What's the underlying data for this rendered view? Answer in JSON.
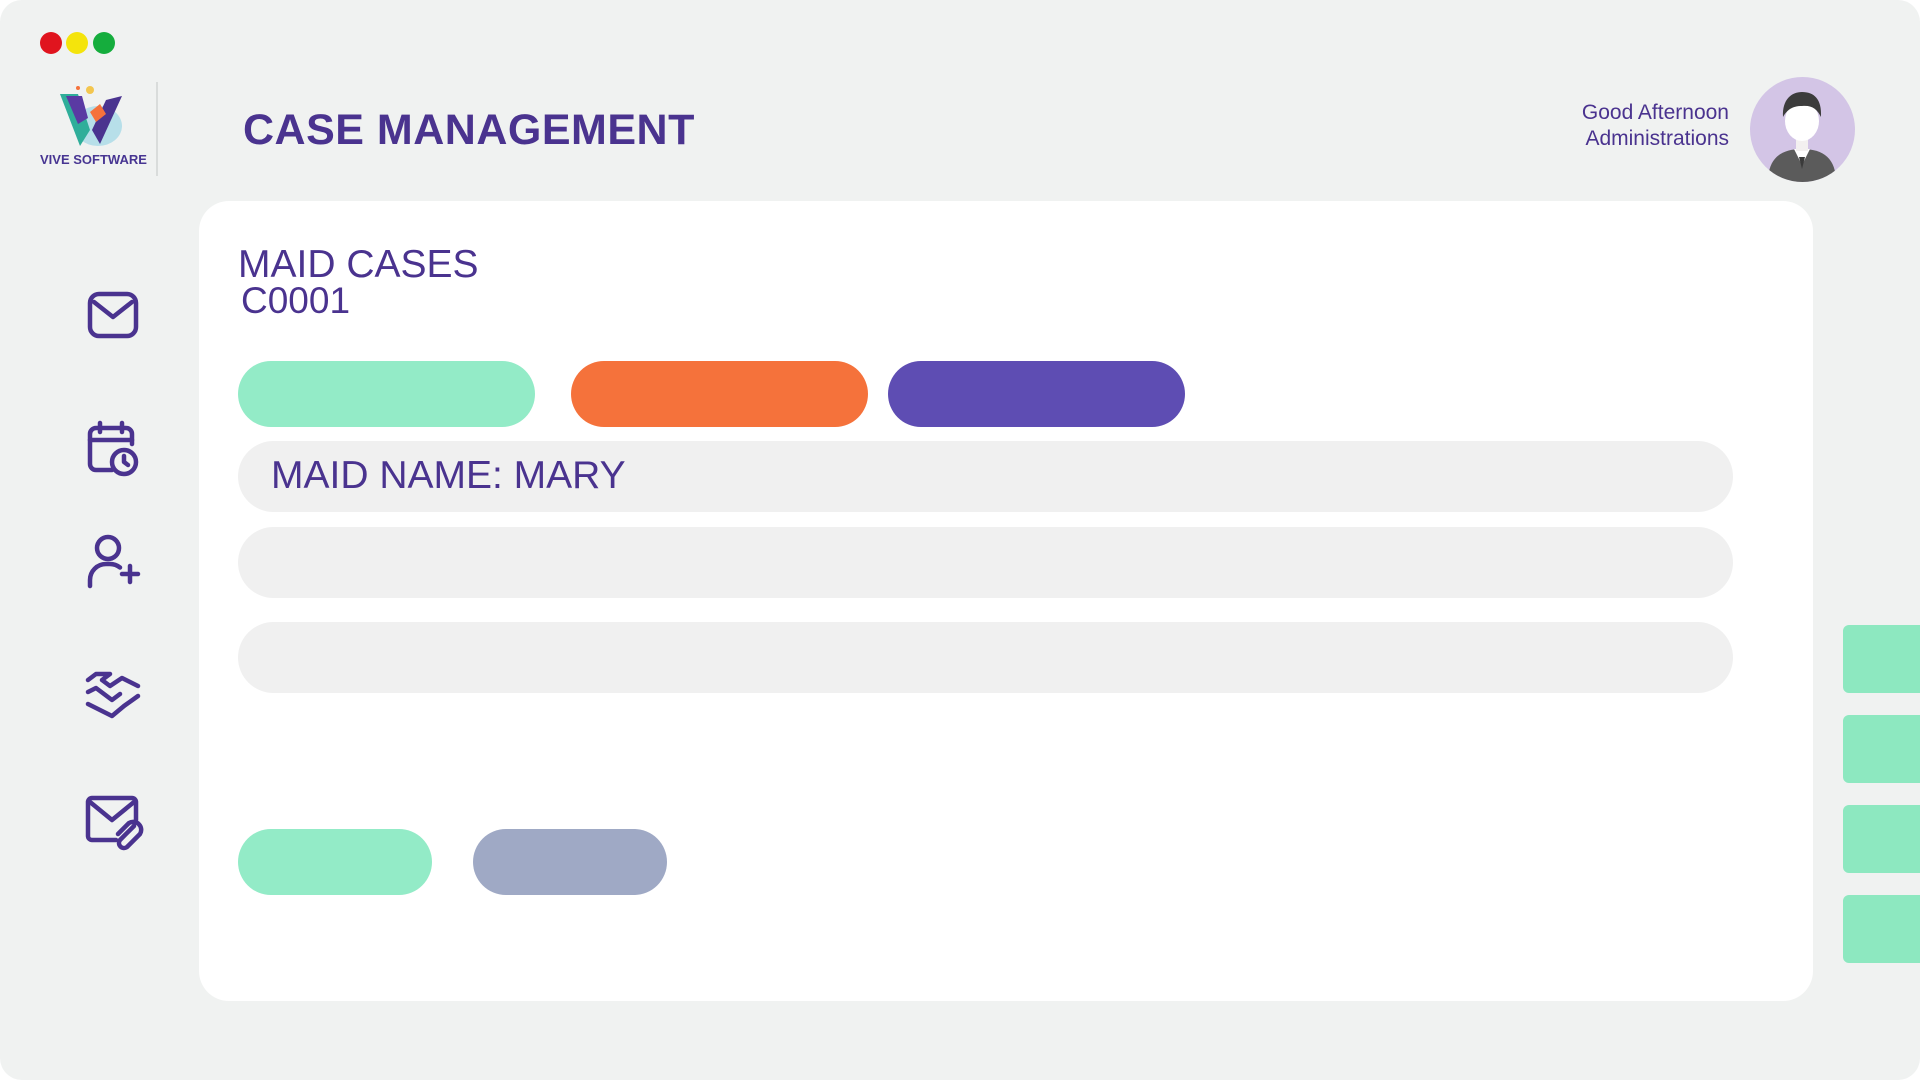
{
  "window": {
    "controls": [
      "close",
      "minimize",
      "maximize"
    ]
  },
  "brand": {
    "name": "VIVE SOFTWARE",
    "logo_icon": "vive-v-logo-icon"
  },
  "header": {
    "title": "CASE MANAGEMENT",
    "greeting": "Good Afternoon",
    "user_name": "Administrations",
    "avatar_icon": "user-avatar-icon"
  },
  "sidebar": {
    "items": [
      {
        "icon": "mail-icon"
      },
      {
        "icon": "calendar-clock-icon"
      },
      {
        "icon": "add-user-icon"
      },
      {
        "icon": "handshake-icon"
      },
      {
        "icon": "mail-attachment-icon"
      }
    ]
  },
  "case": {
    "title": "MAID CASES",
    "id": "C0001",
    "maid_name_field": "MAID NAME: MARY",
    "field_2": "",
    "field_3": ""
  },
  "colors": {
    "accent_purple": "#4a338f",
    "mint": "#93ebc7",
    "orange": "#f5723b",
    "purple_button": "#5e4db3",
    "grey_button": "#9fa9c5"
  }
}
